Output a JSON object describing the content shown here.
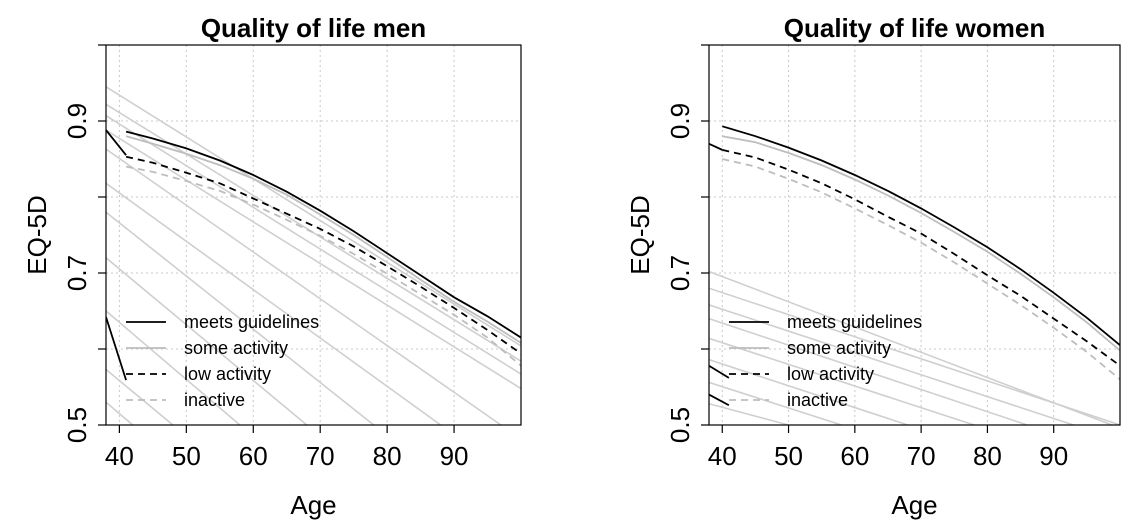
{
  "chart_data": [
    {
      "type": "line",
      "title": "Quality of life men",
      "xlabel": "Age",
      "ylabel": "EQ-5D",
      "xlim": [
        38,
        100
      ],
      "ylim": [
        0.5,
        1.0
      ],
      "xticks": [
        40,
        50,
        60,
        70,
        80,
        90
      ],
      "xtick_labels": [
        "40",
        "50",
        "60",
        "70",
        "80",
        "90"
      ],
      "yticks": [
        0.5,
        0.7,
        0.9
      ],
      "ytick_labels": [
        "0.5",
        "0.7",
        "0.9"
      ],
      "grid": true,
      "grid_style": "dotted",
      "legend_position": "bottom-left",
      "x": [
        41,
        45,
        50,
        55,
        60,
        65,
        70,
        75,
        80,
        85,
        90,
        95,
        100
      ],
      "series": [
        {
          "name": "meets guidelines",
          "color": "#000000",
          "dash": "solid",
          "values": [
            0.886,
            0.877,
            0.864,
            0.848,
            0.829,
            0.807,
            0.782,
            0.755,
            0.726,
            0.697,
            0.668,
            0.643,
            0.615
          ]
        },
        {
          "name": "some activity",
          "color": "#bdbdbd",
          "dash": "solid",
          "values": [
            0.88,
            0.87,
            0.857,
            0.842,
            0.824,
            0.803,
            0.777,
            0.75,
            0.721,
            0.691,
            0.662,
            0.636,
            0.608
          ]
        },
        {
          "name": "low activity",
          "color": "#000000",
          "dash": "dashed",
          "values": [
            0.853,
            0.845,
            0.832,
            0.818,
            0.798,
            0.778,
            0.758,
            0.735,
            0.709,
            0.682,
            0.654,
            0.625,
            0.594
          ]
        },
        {
          "name": "inactive",
          "color": "#bdbdbd",
          "dash": "dashed",
          "values": [
            0.84,
            0.833,
            0.821,
            0.808,
            0.79,
            0.77,
            0.749,
            0.725,
            0.699,
            0.672,
            0.645,
            0.615,
            0.578
          ]
        }
      ],
      "diagonal_lines": [
        {
          "x": [
            38,
            100
          ],
          "y": [
            0.945,
            0.604
          ]
        },
        {
          "x": [
            38,
            100
          ],
          "y": [
            0.922,
            0.584
          ]
        },
        {
          "x": [
            38,
            100
          ],
          "y": [
            0.907,
            0.567
          ]
        },
        {
          "x": [
            38,
            100
          ],
          "y": [
            0.888,
            0.548
          ]
        },
        {
          "x": [
            38,
            97
          ],
          "y": [
            0.863,
            0.5
          ]
        },
        {
          "x": [
            38,
            88
          ],
          "y": [
            0.818,
            0.5
          ]
        },
        {
          "x": [
            38,
            78
          ],
          "y": [
            0.78,
            0.5
          ]
        },
        {
          "x": [
            38,
            68
          ],
          "y": [
            0.72,
            0.5
          ]
        },
        {
          "x": [
            38,
            58
          ],
          "y": [
            0.65,
            0.5
          ]
        },
        {
          "x": [
            38,
            48
          ],
          "y": [
            0.573,
            0.5
          ]
        },
        {
          "x": [
            38,
            42
          ],
          "y": [
            0.53,
            0.5
          ]
        }
      ],
      "extra_black_segments": [
        {
          "x": [
            38,
            41
          ],
          "y": [
            0.888,
            0.855
          ]
        },
        {
          "x": [
            38,
            41
          ],
          "y": [
            0.642,
            0.559
          ]
        }
      ]
    },
    {
      "type": "line",
      "title": "Quality of life women",
      "xlabel": "Age",
      "ylabel": "EQ-5D",
      "xlim": [
        38,
        100
      ],
      "ylim": [
        0.5,
        1.0
      ],
      "xticks": [
        40,
        50,
        60,
        70,
        80,
        90
      ],
      "xtick_labels": [
        "40",
        "50",
        "60",
        "70",
        "80",
        "90"
      ],
      "yticks": [
        0.5,
        0.7,
        0.9
      ],
      "ytick_labels": [
        "0.5",
        "0.7",
        "0.9"
      ],
      "grid": true,
      "grid_style": "dotted",
      "legend_position": "bottom-left",
      "x": [
        40,
        45,
        50,
        55,
        60,
        65,
        70,
        75,
        80,
        85,
        90,
        95,
        100
      ],
      "series": [
        {
          "name": "meets guidelines",
          "color": "#000000",
          "dash": "solid",
          "values": [
            0.893,
            0.88,
            0.865,
            0.848,
            0.829,
            0.808,
            0.785,
            0.76,
            0.734,
            0.705,
            0.674,
            0.641,
            0.605
          ]
        },
        {
          "name": "some activity",
          "color": "#bdbdbd",
          "dash": "solid",
          "values": [
            0.88,
            0.872,
            0.858,
            0.842,
            0.823,
            0.802,
            0.779,
            0.754,
            0.728,
            0.699,
            0.668,
            0.635,
            0.598
          ]
        },
        {
          "name": "low activity",
          "color": "#000000",
          "dash": "dashed",
          "values": [
            0.862,
            0.852,
            0.836,
            0.818,
            0.797,
            0.774,
            0.752,
            0.725,
            0.697,
            0.67,
            0.64,
            0.61,
            0.578
          ]
        },
        {
          "name": "inactive",
          "color": "#bdbdbd",
          "dash": "dashed",
          "values": [
            0.85,
            0.84,
            0.824,
            0.806,
            0.785,
            0.763,
            0.74,
            0.714,
            0.686,
            0.658,
            0.628,
            0.596,
            0.56
          ]
        }
      ],
      "diagonal_lines": [
        {
          "x": [
            38,
            100
          ],
          "y": [
            0.702,
            0.496
          ]
        },
        {
          "x": [
            38,
            100
          ],
          "y": [
            0.68,
            0.5
          ]
        },
        {
          "x": [
            38,
            93
          ],
          "y": [
            0.658,
            0.5
          ]
        },
        {
          "x": [
            38,
            86
          ],
          "y": [
            0.64,
            0.5
          ]
        },
        {
          "x": [
            38,
            78
          ],
          "y": [
            0.614,
            0.5
          ]
        },
        {
          "x": [
            38,
            68
          ],
          "y": [
            0.586,
            0.5
          ]
        },
        {
          "x": [
            38,
            58
          ],
          "y": [
            0.556,
            0.5
          ]
        },
        {
          "x": [
            38,
            50
          ],
          "y": [
            0.528,
            0.5
          ]
        }
      ],
      "extra_black_segments": [
        {
          "x": [
            38,
            40
          ],
          "y": [
            0.87,
            0.862
          ]
        },
        {
          "x": [
            38,
            41
          ],
          "y": [
            0.578,
            0.562
          ]
        },
        {
          "x": [
            38,
            41
          ],
          "y": [
            0.54,
            0.526
          ]
        }
      ]
    }
  ]
}
